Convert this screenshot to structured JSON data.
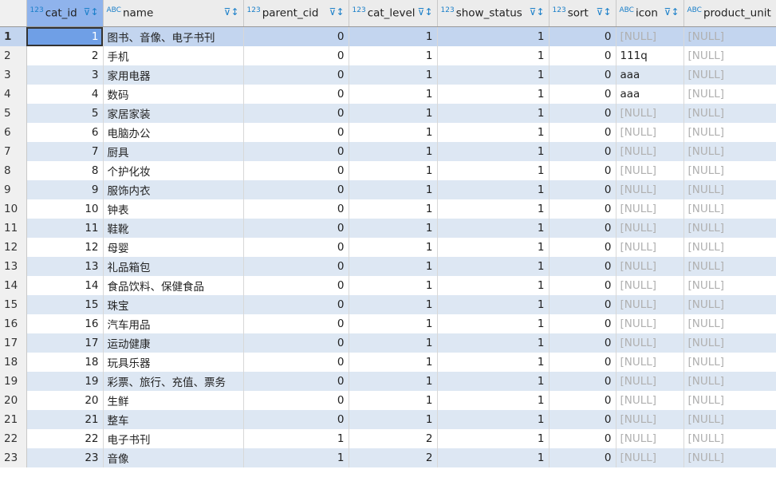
{
  "columns": [
    {
      "name": "cat_id",
      "type": "123",
      "align": "num"
    },
    {
      "name": "name",
      "type": "ABC",
      "align": "txt"
    },
    {
      "name": "parent_cid",
      "type": "123",
      "align": "num"
    },
    {
      "name": "cat_level",
      "type": "123",
      "align": "num"
    },
    {
      "name": "show_status",
      "type": "123",
      "align": "num"
    },
    {
      "name": "sort",
      "type": "123",
      "align": "num"
    },
    {
      "name": "icon",
      "type": "ABC",
      "align": "txt"
    },
    {
      "name": "product_unit",
      "type": "ABC",
      "align": "txt"
    }
  ],
  "null_label": "[NULL]",
  "selected_row": 1,
  "rows": [
    [
      "1",
      "图书、音像、电子书刊",
      "0",
      "1",
      "1",
      "0",
      null,
      null
    ],
    [
      "2",
      "手机",
      "0",
      "1",
      "1",
      "0",
      "111q",
      null
    ],
    [
      "3",
      "家用电器",
      "0",
      "1",
      "1",
      "0",
      "aaa",
      null
    ],
    [
      "4",
      "数码",
      "0",
      "1",
      "1",
      "0",
      "aaa",
      null
    ],
    [
      "5",
      "家居家装",
      "0",
      "1",
      "1",
      "0",
      null,
      null
    ],
    [
      "6",
      "电脑办公",
      "0",
      "1",
      "1",
      "0",
      null,
      null
    ],
    [
      "7",
      "厨具",
      "0",
      "1",
      "1",
      "0",
      null,
      null
    ],
    [
      "8",
      "个护化妆",
      "0",
      "1",
      "1",
      "0",
      null,
      null
    ],
    [
      "9",
      "服饰内衣",
      "0",
      "1",
      "1",
      "0",
      null,
      null
    ],
    [
      "10",
      "钟表",
      "0",
      "1",
      "1",
      "0",
      null,
      null
    ],
    [
      "11",
      "鞋靴",
      "0",
      "1",
      "1",
      "0",
      null,
      null
    ],
    [
      "12",
      "母婴",
      "0",
      "1",
      "1",
      "0",
      null,
      null
    ],
    [
      "13",
      "礼品箱包",
      "0",
      "1",
      "1",
      "0",
      null,
      null
    ],
    [
      "14",
      "食品饮料、保健食品",
      "0",
      "1",
      "1",
      "0",
      null,
      null
    ],
    [
      "15",
      "珠宝",
      "0",
      "1",
      "1",
      "0",
      null,
      null
    ],
    [
      "16",
      "汽车用品",
      "0",
      "1",
      "1",
      "0",
      null,
      null
    ],
    [
      "17",
      "运动健康",
      "0",
      "1",
      "1",
      "0",
      null,
      null
    ],
    [
      "18",
      "玩具乐器",
      "0",
      "1",
      "1",
      "0",
      null,
      null
    ],
    [
      "19",
      "彩票、旅行、充值、票务",
      "0",
      "1",
      "1",
      "0",
      null,
      null
    ],
    [
      "20",
      "生鲜",
      "0",
      "1",
      "1",
      "0",
      null,
      null
    ],
    [
      "21",
      "整车",
      "0",
      "1",
      "1",
      "0",
      null,
      null
    ],
    [
      "22",
      "电子书刊",
      "1",
      "2",
      "1",
      "0",
      null,
      null
    ],
    [
      "23",
      "音像",
      "1",
      "2",
      "1",
      "0",
      null,
      null
    ],
    [
      "24",
      "",
      "",
      "",
      "",
      "",
      "",
      ""
    ]
  ]
}
